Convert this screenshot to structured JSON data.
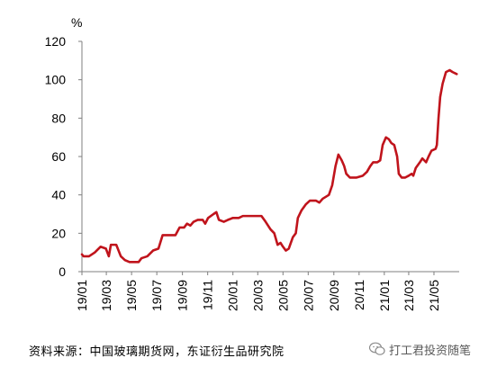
{
  "chart_data": {
    "type": "line",
    "title": "",
    "xlabel": "",
    "ylabel": "%",
    "ylim": [
      0,
      120
    ],
    "yticks": [
      0,
      20,
      40,
      60,
      80,
      100,
      120
    ],
    "xlim": [
      "2019-01-01",
      "2021-07-01"
    ],
    "xticks": [
      "19/01",
      "19/03",
      "19/05",
      "19/07",
      "19/09",
      "19/11",
      "20/01",
      "20/03",
      "20/05",
      "20/07",
      "20/09",
      "20/11",
      "21/01",
      "21/03",
      "21/05"
    ],
    "grid": false,
    "legend": "none",
    "series": [
      {
        "color": "#c0141c",
        "points": [
          [
            "2019-01-01",
            9
          ],
          [
            "2019-01-05",
            8
          ],
          [
            "2019-01-18",
            8
          ],
          [
            "2019-02-01",
            10
          ],
          [
            "2019-02-15",
            13
          ],
          [
            "2019-02-28",
            12
          ],
          [
            "2019-03-07",
            8
          ],
          [
            "2019-03-12",
            14
          ],
          [
            "2019-03-25",
            14
          ],
          [
            "2019-04-05",
            8
          ],
          [
            "2019-04-15",
            6
          ],
          [
            "2019-04-26",
            5
          ],
          [
            "2019-05-10",
            5
          ],
          [
            "2019-05-18",
            5
          ],
          [
            "2019-05-25",
            7
          ],
          [
            "2019-06-08",
            8
          ],
          [
            "2019-06-22",
            11
          ],
          [
            "2019-07-05",
            12
          ],
          [
            "2019-07-15",
            19
          ],
          [
            "2019-08-01",
            19
          ],
          [
            "2019-08-15",
            19
          ],
          [
            "2019-08-25",
            23
          ],
          [
            "2019-09-05",
            23
          ],
          [
            "2019-09-12",
            25
          ],
          [
            "2019-09-20",
            24
          ],
          [
            "2019-09-28",
            26
          ],
          [
            "2019-10-08",
            27
          ],
          [
            "2019-10-20",
            27
          ],
          [
            "2019-10-26",
            25
          ],
          [
            "2019-11-02",
            28
          ],
          [
            "2019-11-15",
            30
          ],
          [
            "2019-11-22",
            31
          ],
          [
            "2019-11-28",
            27
          ],
          [
            "2019-12-10",
            26
          ],
          [
            "2019-12-20",
            27
          ],
          [
            "2020-01-01",
            28
          ],
          [
            "2020-01-15",
            28
          ],
          [
            "2020-01-25",
            29
          ],
          [
            "2020-02-01",
            29
          ],
          [
            "2020-03-10",
            29
          ],
          [
            "2020-03-20",
            26
          ],
          [
            "2020-04-01",
            22
          ],
          [
            "2020-04-10",
            20
          ],
          [
            "2020-04-18",
            14
          ],
          [
            "2020-04-25",
            15
          ],
          [
            "2020-05-01",
            13
          ],
          [
            "2020-05-08",
            11
          ],
          [
            "2020-05-15",
            12
          ],
          [
            "2020-05-25",
            18
          ],
          [
            "2020-06-01",
            20
          ],
          [
            "2020-06-06",
            28
          ],
          [
            "2020-06-15",
            32
          ],
          [
            "2020-06-25",
            35
          ],
          [
            "2020-07-05",
            37
          ],
          [
            "2020-07-20",
            37
          ],
          [
            "2020-07-28",
            36
          ],
          [
            "2020-08-05",
            38
          ],
          [
            "2020-08-20",
            40
          ],
          [
            "2020-08-28",
            45
          ],
          [
            "2020-09-05",
            55
          ],
          [
            "2020-09-12",
            61
          ],
          [
            "2020-09-20",
            58
          ],
          [
            "2020-09-26",
            55
          ],
          [
            "2020-10-01",
            51
          ],
          [
            "2020-10-10",
            49
          ],
          [
            "2020-10-25",
            49
          ],
          [
            "2020-11-10",
            50
          ],
          [
            "2020-11-20",
            52
          ],
          [
            "2020-11-28",
            55
          ],
          [
            "2020-12-05",
            57
          ],
          [
            "2020-12-15",
            57
          ],
          [
            "2020-12-22",
            58
          ],
          [
            "2020-12-28",
            66
          ],
          [
            "2021-01-05",
            70
          ],
          [
            "2021-01-12",
            69
          ],
          [
            "2021-01-18",
            67
          ],
          [
            "2021-01-25",
            66
          ],
          [
            "2021-02-01",
            60
          ],
          [
            "2021-02-05",
            51
          ],
          [
            "2021-02-12",
            49
          ],
          [
            "2021-02-20",
            49
          ],
          [
            "2021-03-01",
            50
          ],
          [
            "2021-03-08",
            51
          ],
          [
            "2021-03-12",
            50
          ],
          [
            "2021-03-18",
            54
          ],
          [
            "2021-03-28",
            57
          ],
          [
            "2021-04-03",
            59
          ],
          [
            "2021-04-12",
            57
          ],
          [
            "2021-04-18",
            60
          ],
          [
            "2021-04-25",
            63
          ],
          [
            "2021-05-05",
            64
          ],
          [
            "2021-05-08",
            66
          ],
          [
            "2021-05-12",
            80
          ],
          [
            "2021-05-16",
            91
          ],
          [
            "2021-05-22",
            98
          ],
          [
            "2021-05-30",
            104
          ],
          [
            "2021-06-08",
            105
          ],
          [
            "2021-06-15",
            104
          ],
          [
            "2021-06-25",
            103
          ]
        ]
      }
    ]
  },
  "source_text": "资料来源：中国玻璃期货网，东证衍生品研究院",
  "watermark": {
    "icon": "wechat-icon",
    "text": "打工君投资随笔"
  }
}
